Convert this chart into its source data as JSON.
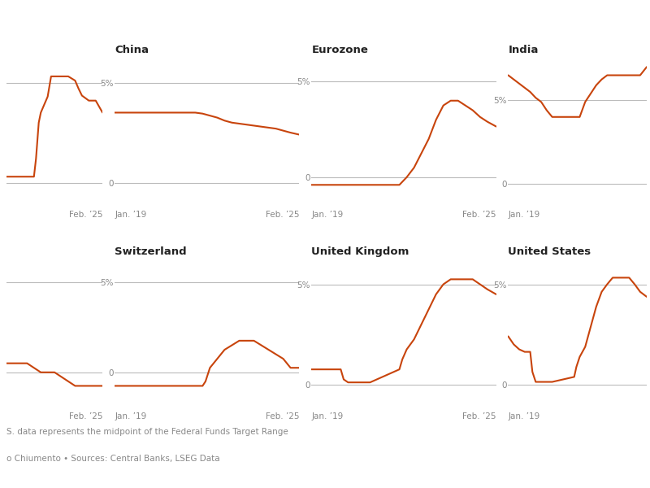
{
  "background_color": "#ffffff",
  "line_color": "#c8440c",
  "text_color": "#888888",
  "title_color": "#222222",
  "hline_color": "#bbbbbb",
  "footnote1": "S. data represents the midpoint of the Federal Funds Target Range",
  "footnote2": "o Chiumento • Sources: Central Banks, LSEG Data",
  "panels": [
    {
      "title": "",
      "col": 0,
      "row": 0,
      "is_partial": true,
      "partial_side": "right",
      "xlim": [
        2005,
        2019
      ],
      "ylim": [
        -0.3,
        6.2
      ],
      "yticks": [
        0,
        5
      ],
      "ytick_labels": [
        "",
        ""
      ],
      "x_label_right": "Feb. ’25",
      "data_x": [
        2005,
        2007,
        2008,
        2009,
        2009.3,
        2009.7,
        2010,
        2011,
        2011.5,
        2012,
        2013,
        2014,
        2015,
        2015.5,
        2016,
        2017,
        2018,
        2019
      ],
      "data_y": [
        0.3,
        0.3,
        0.3,
        0.3,
        1.2,
        3.0,
        3.5,
        4.3,
        5.31,
        5.31,
        5.31,
        5.31,
        5.1,
        4.7,
        4.35,
        4.1,
        4.1,
        3.5
      ]
    },
    {
      "title": "China",
      "col": 1,
      "row": 0,
      "is_partial": false,
      "xlim": [
        2019,
        2025.3
      ],
      "ylim": [
        -0.3,
        6.2
      ],
      "yticks": [
        0,
        5
      ],
      "ytick_labels": [
        "0",
        "5%"
      ],
      "x_label_left": "Jan. ’19",
      "x_label_right": "Feb. ’25",
      "data_x": [
        2019,
        2019.5,
        2020,
        2020.25,
        2020.5,
        2020.75,
        2021,
        2021.25,
        2021.5,
        2021.75,
        2022,
        2022.25,
        2022.5,
        2022.75,
        2023,
        2023.25,
        2023.5,
        2023.75,
        2024,
        2024.25,
        2024.5,
        2024.75,
        2025,
        2025.3
      ],
      "data_y": [
        3.5,
        3.5,
        3.5,
        3.5,
        3.5,
        3.5,
        3.5,
        3.5,
        3.5,
        3.5,
        3.45,
        3.35,
        3.25,
        3.1,
        3.0,
        2.95,
        2.9,
        2.85,
        2.8,
        2.75,
        2.7,
        2.6,
        2.5,
        2.4
      ]
    },
    {
      "title": "Eurozone",
      "col": 2,
      "row": 0,
      "is_partial": false,
      "xlim": [
        2019,
        2025.3
      ],
      "ylim": [
        -0.6,
        6.2
      ],
      "yticks": [
        0,
        5
      ],
      "ytick_labels": [
        "0",
        "5%"
      ],
      "x_label_left": "Jan. ’19",
      "x_label_right": "Feb. ’25",
      "data_x": [
        2019,
        2020,
        2021,
        2022,
        2022.25,
        2022.5,
        2022.75,
        2023,
        2023.25,
        2023.5,
        2023.75,
        2024,
        2024.25,
        2024.5,
        2024.75,
        2025,
        2025.3
      ],
      "data_y": [
        -0.4,
        -0.4,
        -0.4,
        -0.4,
        0.0,
        0.5,
        1.25,
        2.0,
        3.0,
        3.75,
        4.0,
        4.0,
        3.75,
        3.5,
        3.15,
        2.9,
        2.65
      ]
    },
    {
      "title": "India",
      "col": 3,
      "row": 0,
      "is_partial": true,
      "partial_side": "left",
      "xlim": [
        2019,
        2025.3
      ],
      "ylim": [
        -0.3,
        7.5
      ],
      "yticks": [
        0,
        5
      ],
      "ytick_labels": [
        "0",
        "5%"
      ],
      "x_label_left": "Jan. ’19",
      "data_x": [
        2019,
        2019.25,
        2019.5,
        2019.75,
        2020,
        2020.25,
        2020.5,
        2020.75,
        2021,
        2021.25,
        2021.5,
        2021.75,
        2022,
        2022.25,
        2022.5,
        2022.75,
        2023,
        2023.25,
        2023.5,
        2023.75,
        2024,
        2024.25,
        2024.5,
        2024.75,
        2025,
        2025.3
      ],
      "data_y": [
        6.5,
        6.25,
        6.0,
        5.75,
        5.5,
        5.15,
        4.9,
        4.4,
        4.0,
        4.0,
        4.0,
        4.0,
        4.0,
        4.0,
        4.9,
        5.4,
        5.9,
        6.25,
        6.5,
        6.5,
        6.5,
        6.5,
        6.5,
        6.5,
        6.5,
        7.0
      ]
    },
    {
      "title": "",
      "col": 0,
      "row": 1,
      "is_partial": true,
      "partial_side": "right",
      "xlim": [
        2005,
        2019
      ],
      "ylim": [
        -1.0,
        6.2
      ],
      "yticks": [
        0,
        5
      ],
      "ytick_labels": [
        "",
        ""
      ],
      "x_label_right": "Feb. ’25",
      "data_x": [
        2005,
        2007,
        2008,
        2009,
        2010,
        2012,
        2015,
        2019
      ],
      "data_y": [
        0.5,
        0.5,
        0.5,
        0.25,
        0.0,
        0.0,
        -0.75,
        -0.75
      ]
    },
    {
      "title": "Switzerland",
      "col": 1,
      "row": 1,
      "is_partial": false,
      "xlim": [
        2019,
        2025.3
      ],
      "ylim": [
        -1.0,
        6.2
      ],
      "yticks": [
        0,
        5
      ],
      "ytick_labels": [
        "0",
        "5%"
      ],
      "x_label_left": "Jan. ’19",
      "x_label_right": "Feb. ’25",
      "data_x": [
        2019,
        2020,
        2021,
        2022,
        2022.1,
        2022.25,
        2022.5,
        2022.75,
        2023,
        2023.1,
        2023.25,
        2023.5,
        2023.6,
        2023.75,
        2023.9,
        2024,
        2024.25,
        2024.5,
        2024.75,
        2025,
        2025.3
      ],
      "data_y": [
        -0.75,
        -0.75,
        -0.75,
        -0.75,
        -0.5,
        0.25,
        0.75,
        1.25,
        1.5,
        1.6,
        1.75,
        1.75,
        1.75,
        1.75,
        1.6,
        1.5,
        1.25,
        1.0,
        0.75,
        0.25,
        0.25
      ]
    },
    {
      "title": "United Kingdom",
      "col": 2,
      "row": 1,
      "is_partial": false,
      "xlim": [
        2019,
        2025.3
      ],
      "ylim": [
        -0.3,
        6.2
      ],
      "yticks": [
        0,
        5
      ],
      "ytick_labels": [
        "0",
        "5%"
      ],
      "x_label_left": "Jan. ’19",
      "x_label_right": "Feb. ’25",
      "data_x": [
        2019,
        2020,
        2020.1,
        2020.25,
        2021,
        2022,
        2022.1,
        2022.25,
        2022.5,
        2022.75,
        2023,
        2023.25,
        2023.5,
        2023.75,
        2024,
        2024.25,
        2024.5,
        2024.75,
        2025,
        2025.3
      ],
      "data_y": [
        0.75,
        0.75,
        0.25,
        0.1,
        0.1,
        0.75,
        1.25,
        1.75,
        2.25,
        3.0,
        3.75,
        4.5,
        5.0,
        5.25,
        5.25,
        5.25,
        5.25,
        5.0,
        4.75,
        4.5
      ]
    },
    {
      "title": "United States",
      "col": 3,
      "row": 1,
      "is_partial": true,
      "partial_side": "left",
      "xlim": [
        2019,
        2025.3
      ],
      "ylim": [
        -0.3,
        6.2
      ],
      "yticks": [
        0,
        5
      ],
      "ytick_labels": [
        "0",
        "5%"
      ],
      "x_label_left": "Jan. ’19",
      "data_x": [
        2019,
        2019.25,
        2019.5,
        2019.75,
        2020,
        2020.1,
        2020.25,
        2021,
        2022,
        2022.1,
        2022.25,
        2022.5,
        2022.75,
        2023,
        2023.25,
        2023.5,
        2023.75,
        2024,
        2024.25,
        2024.5,
        2024.75,
        2025,
        2025.3
      ],
      "data_y": [
        2.4,
        2.0,
        1.75,
        1.625,
        1.625,
        0.625,
        0.125,
        0.125,
        0.375,
        0.875,
        1.375,
        1.875,
        2.875,
        3.875,
        4.625,
        5.0,
        5.33,
        5.33,
        5.33,
        5.33,
        5.0,
        4.625,
        4.375
      ]
    }
  ]
}
